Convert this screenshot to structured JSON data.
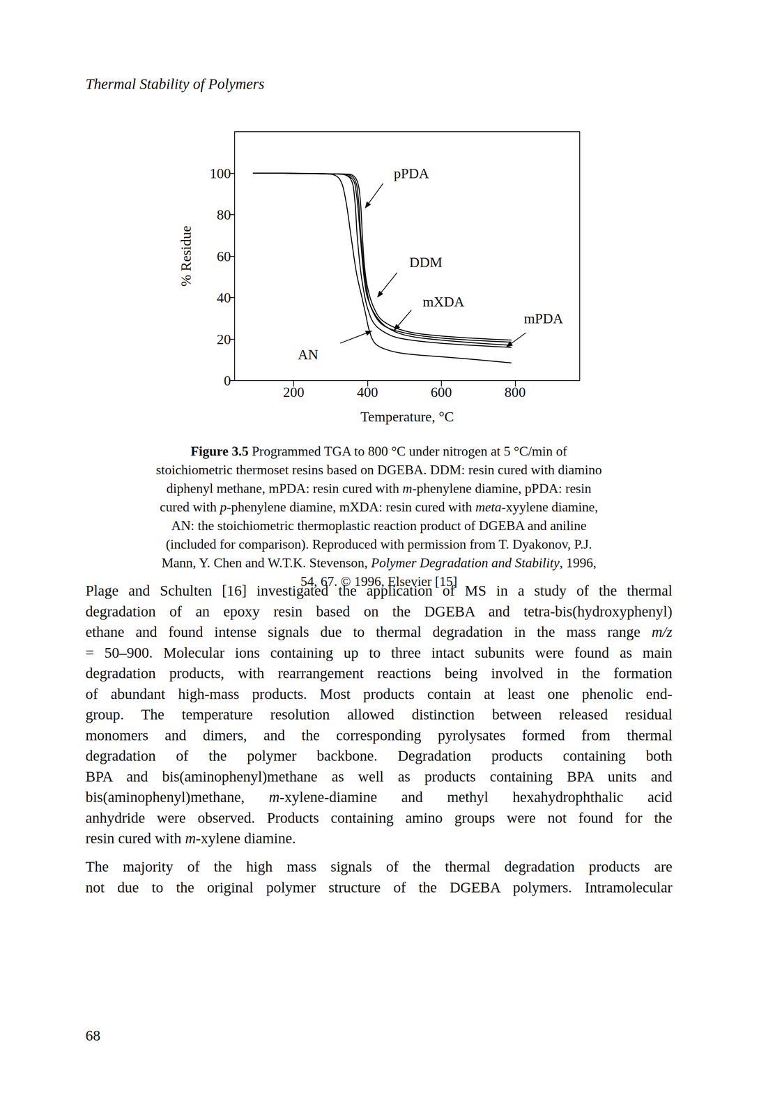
{
  "header": "Thermal Stability of Polymers",
  "chart_data": {
    "type": "line",
    "x_label": "Temperature, °C",
    "y_label": "% Residue",
    "xlim": [
      40,
      975
    ],
    "ylim": [
      0,
      120
    ],
    "xticks": [
      200,
      400,
      600,
      800
    ],
    "yticks": [
      0,
      20,
      40,
      60,
      80,
      100
    ],
    "grid": false,
    "series": [
      {
        "name": "pPDA",
        "color": "#000000",
        "x": [
          90,
          350,
          370,
          380,
          386,
          392,
          400,
          415,
          440,
          500,
          600,
          790
        ],
        "values": [
          100,
          99.5,
          97,
          88,
          70,
          55,
          45,
          36,
          29,
          24,
          21.5,
          19.5
        ],
        "label_at": [
          519,
          100
        ],
        "arrow_from": [
          442,
          95
        ],
        "arrow_to": [
          393,
          83
        ]
      },
      {
        "name": "DDM",
        "color": "#000000",
        "x": [
          90,
          330,
          360,
          370,
          378,
          385,
          392,
          400,
          420,
          450,
          500,
          600,
          790
        ],
        "values": [
          100,
          99.5,
          97,
          90,
          75,
          60,
          48,
          40,
          32,
          26,
          22,
          19.5,
          17
        ],
        "label_at": [
          558,
          57
        ],
        "arrow_from": [
          480,
          52
        ],
        "arrow_to": [
          426,
          40
        ]
      },
      {
        "name": "mXDA",
        "color": "#000000",
        "x": [
          90,
          330,
          355,
          365,
          372,
          380,
          388,
          400,
          420,
          460,
          500,
          600,
          790
        ],
        "values": [
          100,
          99.5,
          97,
          88,
          70,
          55,
          45,
          35,
          27,
          22,
          20,
          18,
          16
        ],
        "label_at": [
          606,
          38
        ],
        "arrow_from": [
          519,
          34
        ],
        "arrow_to": [
          471,
          24
        ]
      },
      {
        "name": "mPDA",
        "color": "#000000",
        "x": [
          90,
          340,
          365,
          375,
          382,
          390,
          398,
          410,
          440,
          500,
          600,
          790
        ],
        "values": [
          100,
          99.5,
          97,
          88,
          70,
          55,
          44,
          35,
          27,
          23,
          20.5,
          18.5
        ],
        "label_at": [
          877,
          30
        ],
        "arrow_from": [
          829,
          23
        ],
        "arrow_to": [
          775,
          16
        ]
      },
      {
        "name": "AN",
        "color": "#000000",
        "x": [
          90,
          300,
          325,
          340,
          355,
          370,
          385,
          395,
          405,
          420,
          450,
          500,
          600,
          700,
          790
        ],
        "values": [
          100,
          99.5,
          97,
          88,
          70,
          52,
          40,
          32,
          24,
          18,
          15,
          13,
          11.5,
          10,
          8.5
        ],
        "label_at": [
          239,
          12.6
        ],
        "arrow_from": [
          326,
          18
        ],
        "arrow_to": [
          413,
          24
        ]
      }
    ]
  },
  "caption": [
    [
      {
        "bold": "Figure 3.5"
      },
      " Programmed TGA to 800 °C under nitrogen at 5 °C/min of"
    ],
    [
      "stoichiometric thermoset resins based on DGEBA. DDM: resin cured with diamino"
    ],
    [
      "diphenyl methane, mPDA: resin cured with ",
      {
        "italic": "m"
      },
      "-phenylene diamine, pPDA: resin"
    ],
    [
      "cured with ",
      {
        "italic": "p"
      },
      "-phenylene diamine, mXDA: resin cured with ",
      {
        "italic": "meta"
      },
      "-xyylene diamine,"
    ],
    [
      "AN: the stoichiometric thermoplastic reaction product of DGEBA and aniline"
    ],
    [
      "(included for comparison). Reproduced with permission from T. Dyakonov, P.J."
    ],
    [
      "Mann, Y. Chen and W.T.K. Stevenson, ",
      {
        "italic": "Polymer Degradation and Stability"
      },
      ", 1996,"
    ],
    [
      "54, 67. © 1996, Elsevier [15]"
    ]
  ],
  "paragraphs": [
    [
      [
        "Plage and Schulten [16] investigated the application of MS in a study of the thermal"
      ],
      [
        "degradation of an epoxy resin based on the DGEBA and tetra-bis(hydroxyphenyl)"
      ],
      [
        "ethane and found intense signals due to thermal degradation in the mass range ",
        {
          "italic": "m/z"
        }
      ],
      [
        "= 50–900. Molecular ions containing up to three intact subunits were found as main"
      ],
      [
        "degradation products, with rearrangement reactions being involved in the formation"
      ],
      [
        "of abundant high-mass products. Most products contain at least one phenolic end-"
      ],
      [
        "group. The temperature resolution allowed distinction between released residual"
      ],
      [
        "monomers and dimers, and the corresponding pyrolysates formed from thermal"
      ],
      [
        "degradation of the polymer backbone. Degradation products containing both"
      ],
      [
        "BPA and bis(aminophenyl)methane as well as products containing BPA units and"
      ],
      [
        "bis(aminophenyl)methane, ",
        {
          "italic": "m"
        },
        "-xylene-diamine and methyl hexahydrophthalic acid"
      ],
      [
        "anhydride were observed. Products containing amino groups were not found for the"
      ],
      [
        "resin cured with ",
        {
          "italic": "m"
        },
        "-xylene diamine."
      ]
    ],
    [
      [
        "The majority of the high mass signals of the thermal degradation products are"
      ],
      [
        "not due to the original polymer structure of the DGEBA polymers. Intramolecular"
      ]
    ]
  ],
  "page_number": "68"
}
